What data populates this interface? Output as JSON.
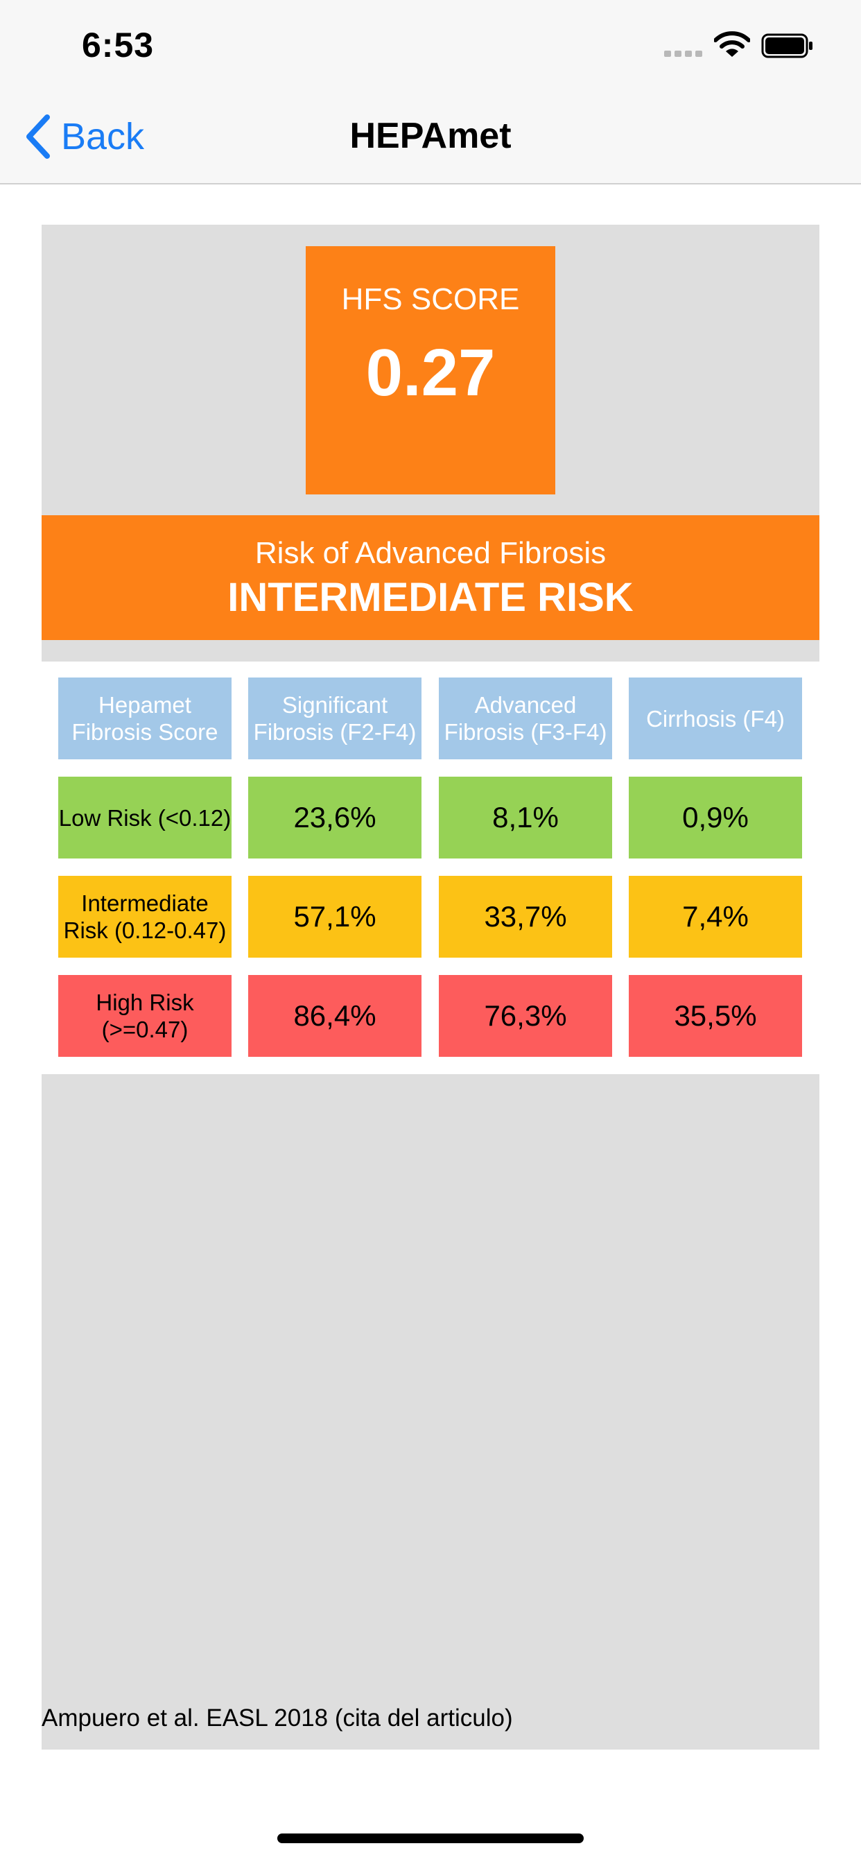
{
  "status_bar": {
    "time": "6:53"
  },
  "nav": {
    "back_label": "Back",
    "title": "HEPAmet"
  },
  "score": {
    "label": "HFS SCORE",
    "value": "0.27"
  },
  "risk": {
    "title": "Risk of Advanced Fibrosis",
    "level": "INTERMEDIATE RISK"
  },
  "table": {
    "headers": [
      "Hepamet Fibrosis Score",
      "Significant Fibrosis (F2-F4)",
      "Advanced Fibrosis (F3-F4)",
      "Cirrhosis (F4)"
    ],
    "rows": [
      {
        "label": "Low Risk (<0.12)",
        "values": [
          "23,6%",
          "8,1%",
          "0,9%"
        ]
      },
      {
        "label": "Intermediate Risk (0.12-0.47)",
        "values": [
          "57,1%",
          "33,7%",
          "7,4%"
        ]
      },
      {
        "label": "High Risk (>=0.47)",
        "values": [
          "86,4%",
          "76,3%",
          "35,5%"
        ]
      }
    ]
  },
  "citation": "Ampuero et al. EASL 2018 (cita del articulo)",
  "colors": {
    "accent": "#fd8117",
    "link": "#1a7cf5",
    "header_cell": "#a3c8e8",
    "low_risk": "#96d255",
    "intermediate_risk": "#fcc215",
    "high_risk": "#fd5c5c",
    "panel": "#dedede"
  },
  "icons": [
    "chevron-left-icon",
    "signal-dots-icon",
    "wifi-icon",
    "battery-icon"
  ]
}
